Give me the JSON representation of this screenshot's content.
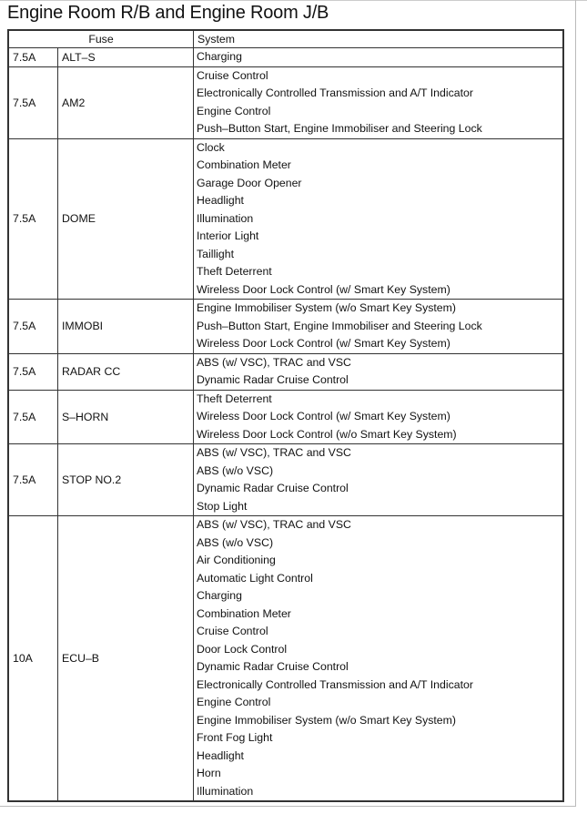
{
  "title": "Engine Room R/B and Engine Room J/B",
  "headers": {
    "fuse": "Fuse",
    "system": "System"
  },
  "rows": [
    {
      "amp": "7.5A",
      "name": "ALT–S",
      "systems": [
        "Charging"
      ]
    },
    {
      "amp": "7.5A",
      "name": "AM2",
      "systems": [
        "Cruise Control",
        "Electronically Controlled Transmission and A/T Indicator",
        "Engine Control",
        "Push–Button Start, Engine Immobiliser and Steering Lock"
      ]
    },
    {
      "amp": "7.5A",
      "name": "DOME",
      "systems": [
        "Clock",
        "Combination Meter",
        "Garage Door Opener",
        "Headlight",
        "Illumination",
        "Interior Light",
        "Taillight",
        "Theft Deterrent",
        "Wireless Door Lock Control (w/ Smart Key System)"
      ]
    },
    {
      "amp": "7.5A",
      "name": "IMMOBI",
      "systems": [
        "Engine Immobiliser System (w/o Smart Key System)",
        "Push–Button Start, Engine Immobiliser and Steering Lock",
        "Wireless Door Lock Control (w/ Smart Key System)"
      ]
    },
    {
      "amp": "7.5A",
      "name": "RADAR CC",
      "systems": [
        "ABS (w/ VSC), TRAC and VSC",
        "Dynamic Radar Cruise Control"
      ]
    },
    {
      "amp": "7.5A",
      "name": "S–HORN",
      "systems": [
        "Theft Deterrent",
        "Wireless Door Lock Control (w/ Smart Key System)",
        "Wireless Door Lock Control (w/o Smart Key System)"
      ]
    },
    {
      "amp": "7.5A",
      "name": "STOP NO.2",
      "systems": [
        "ABS (w/ VSC), TRAC and VSC",
        "ABS (w/o VSC)",
        "Dynamic Radar Cruise Control",
        "Stop Light"
      ]
    },
    {
      "amp": "10A",
      "name": "ECU–B",
      "systems": [
        "ABS (w/ VSC), TRAC and VSC",
        "ABS (w/o VSC)",
        "Air Conditioning",
        "Automatic Light Control",
        "Charging",
        "Combination Meter",
        "Cruise Control",
        "Door Lock Control",
        "Dynamic Radar Cruise Control",
        "Electronically Controlled Transmission and A/T Indicator",
        "Engine Control",
        "Engine Immobiliser System (w/o Smart Key System)",
        "Front Fog Light",
        "Headlight",
        "Horn",
        "Illumination"
      ]
    }
  ]
}
